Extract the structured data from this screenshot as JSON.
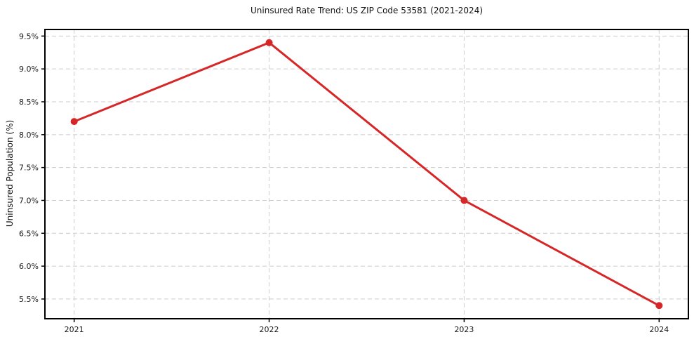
{
  "chart_data": {
    "type": "line",
    "title": "Uninsured Rate Trend: US ZIP Code 53581 (2021-2024)",
    "xlabel": "",
    "ylabel": "Uninsured Population (%)",
    "x": [
      2021,
      2022,
      2023,
      2024
    ],
    "values": [
      8.2,
      9.4,
      7.0,
      5.4
    ],
    "xticks": [
      2021,
      2022,
      2023,
      2024
    ],
    "xtick_labels": [
      "2021",
      "2022",
      "2023",
      "2024"
    ],
    "yticks": [
      5.5,
      6.0,
      6.5,
      7.0,
      7.5,
      8.0,
      8.5,
      9.0,
      9.5
    ],
    "ytick_labels": [
      "5.5%",
      "6.0%",
      "6.5%",
      "7.0%",
      "7.5%",
      "8.0%",
      "8.5%",
      "9.0%",
      "9.5%"
    ],
    "xlim": [
      2020.85,
      2024.15
    ],
    "ylim": [
      5.2,
      9.6
    ],
    "grid": "dashed",
    "legend": "none",
    "marker": "circle",
    "colors": {
      "line": "#d62728",
      "marker": "#d62728",
      "grid": "#cccccc",
      "axis": "#000000",
      "text": "#1a1a1a",
      "background": "#ffffff"
    }
  }
}
